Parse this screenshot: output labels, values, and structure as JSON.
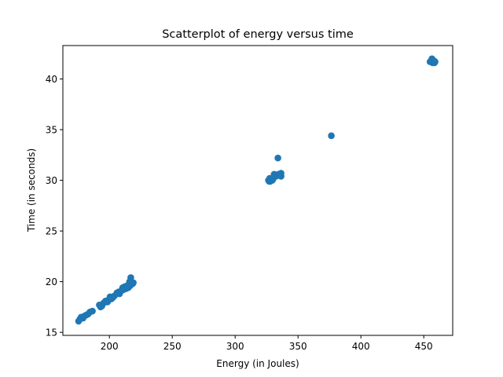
{
  "chart_data": {
    "type": "scatter",
    "title": "Scatterplot of energy versus time",
    "xlabel": "Energy (in Joules)",
    "ylabel": "Time (in seconds)",
    "xlim": [
      163,
      473
    ],
    "ylim": [
      14.7,
      43.3
    ],
    "xticks": [
      200,
      250,
      300,
      350,
      400,
      450
    ],
    "yticks": [
      15,
      20,
      25,
      30,
      35,
      40
    ],
    "grid": false,
    "marker_color": "#1f77b4",
    "points": [
      [
        175.5,
        16.1
      ],
      [
        176.5,
        16.3
      ],
      [
        177.5,
        16.5
      ],
      [
        179,
        16.4
      ],
      [
        180,
        16.6
      ],
      [
        181.5,
        16.7
      ],
      [
        183,
        16.8
      ],
      [
        184.5,
        17.0
      ],
      [
        186.5,
        17.1
      ],
      [
        192,
        17.7
      ],
      [
        193,
        17.5
      ],
      [
        194,
        17.6
      ],
      [
        195.5,
        17.9
      ],
      [
        197,
        18.1
      ],
      [
        198.5,
        18.0
      ],
      [
        199.5,
        18.2
      ],
      [
        200.5,
        18.5
      ],
      [
        201.5,
        18.3
      ],
      [
        202.5,
        18.4
      ],
      [
        204,
        18.6
      ],
      [
        206,
        18.9
      ],
      [
        207.5,
        19.0
      ],
      [
        208,
        18.8
      ],
      [
        209.5,
        19.1
      ],
      [
        210.5,
        19.4
      ],
      [
        211,
        19.2
      ],
      [
        212,
        19.5
      ],
      [
        213,
        19.3
      ],
      [
        214,
        19.6
      ],
      [
        215,
        19.4
      ],
      [
        215.5,
        19.7
      ],
      [
        216,
        20.0
      ],
      [
        216.5,
        19.6
      ],
      [
        217,
        20.4
      ],
      [
        217.5,
        19.8
      ],
      [
        218,
        19.9
      ],
      [
        218.5,
        19.8
      ],
      [
        219,
        19.9
      ],
      [
        326.5,
        30.0
      ],
      [
        327,
        29.9
      ],
      [
        327.5,
        30.2
      ],
      [
        328,
        29.9
      ],
      [
        328.5,
        30.1
      ],
      [
        329.5,
        30.0
      ],
      [
        330,
        30.1
      ],
      [
        330.5,
        30.3
      ],
      [
        331,
        30.6
      ],
      [
        332.5,
        30.4
      ],
      [
        333.5,
        30.5
      ],
      [
        334.5,
        30.6
      ],
      [
        335.5,
        30.5
      ],
      [
        336.5,
        30.7
      ],
      [
        336.5,
        30.4
      ],
      [
        334,
        32.2
      ],
      [
        376.5,
        34.4
      ],
      [
        455,
        41.7
      ],
      [
        456,
        41.8
      ],
      [
        456.5,
        42.0
      ],
      [
        457,
        41.6
      ],
      [
        457.5,
        41.7
      ],
      [
        458,
        41.8
      ],
      [
        458.5,
        41.6
      ],
      [
        459,
        41.7
      ]
    ]
  }
}
